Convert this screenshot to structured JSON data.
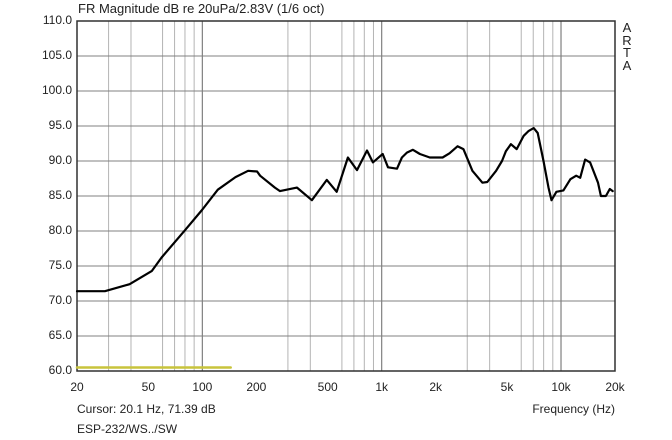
{
  "chart_data": {
    "type": "line",
    "title": "FR Magnitude dB re 20uPa/2.83V (1/6 oct)",
    "brand_label": [
      "A",
      "R",
      "T",
      "A"
    ],
    "xlabel": "Frequency (Hz)",
    "ylabel": "",
    "xscale": "log",
    "xlim": [
      20,
      20000
    ],
    "ylim": [
      60,
      110
    ],
    "grid": true,
    "y_ticks": [
      60,
      65,
      70,
      75,
      80,
      85,
      90,
      95,
      100,
      105,
      110
    ],
    "y_tick_labels": [
      "60.0",
      "65.0",
      "70.0",
      "75.0",
      "80.0",
      "85.0",
      "90.0",
      "95.0",
      "100.0",
      "105.0",
      "110.0"
    ],
    "x_ticks": [
      20,
      50,
      100,
      200,
      500,
      1000,
      2000,
      5000,
      10000,
      20000
    ],
    "x_tick_labels": [
      "20",
      "50",
      "100",
      "200",
      "500",
      "1k",
      "2k",
      "5k",
      "10k",
      "20k"
    ],
    "x_minor_grid": [
      30,
      40,
      60,
      70,
      80,
      90,
      300,
      400,
      600,
      700,
      800,
      900,
      3000,
      4000,
      6000,
      7000,
      8000,
      9000
    ],
    "series": [
      {
        "name": "ESP-232/WS../SW",
        "color": "#000000",
        "x": [
          20,
          28.6,
          39.3,
          52.3,
          59.2,
          79.9,
          99.6,
          122,
          153,
          180,
          202,
          210,
          254,
          271,
          337,
          408,
          494,
          561,
          648,
          728,
          828,
          893,
          1013,
          1085,
          1217,
          1297,
          1383,
          1493,
          1633,
          1855,
          2185,
          2390,
          2647,
          2856,
          3207,
          3643,
          3880,
          4348,
          4690,
          4930,
          5255,
          5662,
          6197,
          6604,
          7040,
          7410,
          7990,
          8514,
          8847,
          9430,
          10310,
          11280,
          12160,
          12790,
          13630,
          14520,
          16070,
          16690,
          17790,
          18710,
          19430
        ],
        "y": [
          71.4,
          71.4,
          72.4,
          74.3,
          76.2,
          80.1,
          83.0,
          85.9,
          87.7,
          88.6,
          88.5,
          87.9,
          86.2,
          85.7,
          86.2,
          84.4,
          87.3,
          85.6,
          90.5,
          88.7,
          91.5,
          89.8,
          91.0,
          89.1,
          88.9,
          90.5,
          91.2,
          91.6,
          91.0,
          90.5,
          90.5,
          91.1,
          92.1,
          91.7,
          88.6,
          86.9,
          87.0,
          88.6,
          90.0,
          91.4,
          92.4,
          91.7,
          93.6,
          94.3,
          94.7,
          94.0,
          90.0,
          86.2,
          84.4,
          85.6,
          85.8,
          87.4,
          87.9,
          87.6,
          90.2,
          89.8,
          86.9,
          85.0,
          85.0,
          86.0,
          85.7
        ]
      },
      {
        "name": "limit-marker",
        "color": "#c8c43c",
        "x": [
          20,
          144
        ],
        "y": [
          60.5,
          60.5
        ]
      }
    ],
    "annotations": {
      "cursor": "Cursor: 20.1 Hz, 71.39 dB",
      "legend": "ESP-232/WS../SW"
    }
  },
  "colors": {
    "curve": "#000000",
    "grid": "#b4b4b4",
    "major_grid": "#808080",
    "frame": "#303030",
    "marker": "#c8c43c"
  }
}
